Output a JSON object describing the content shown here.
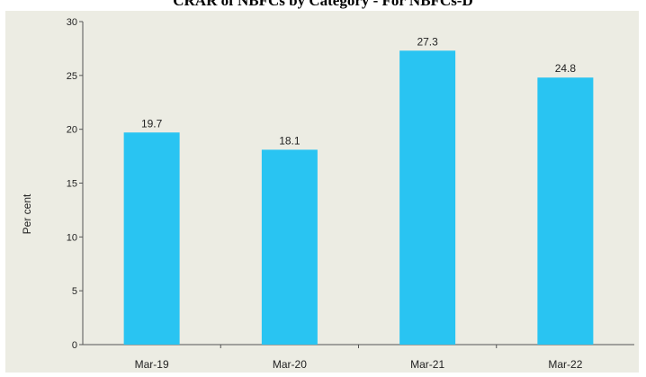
{
  "chart_data": {
    "type": "bar",
    "title": "CRAR of NBFCs by Category - For NBFCs-D",
    "xlabel": "",
    "ylabel": "Per cent",
    "categories": [
      "Mar-19",
      "Mar-20",
      "Mar-21",
      "Mar-22"
    ],
    "values": [
      19.7,
      18.1,
      27.3,
      24.8
    ],
    "data_labels": [
      "19.7",
      "18.1",
      "27.3",
      "24.8"
    ],
    "ylim": [
      0,
      30
    ],
    "yticks": [
      "0",
      "5",
      "10",
      "15",
      "20",
      "25",
      "30"
    ],
    "grid": false,
    "legend": "none",
    "colors": {
      "bar": "#29c4f2",
      "panel": "#ecece3",
      "axis": "#555555",
      "text": "#222222"
    }
  }
}
